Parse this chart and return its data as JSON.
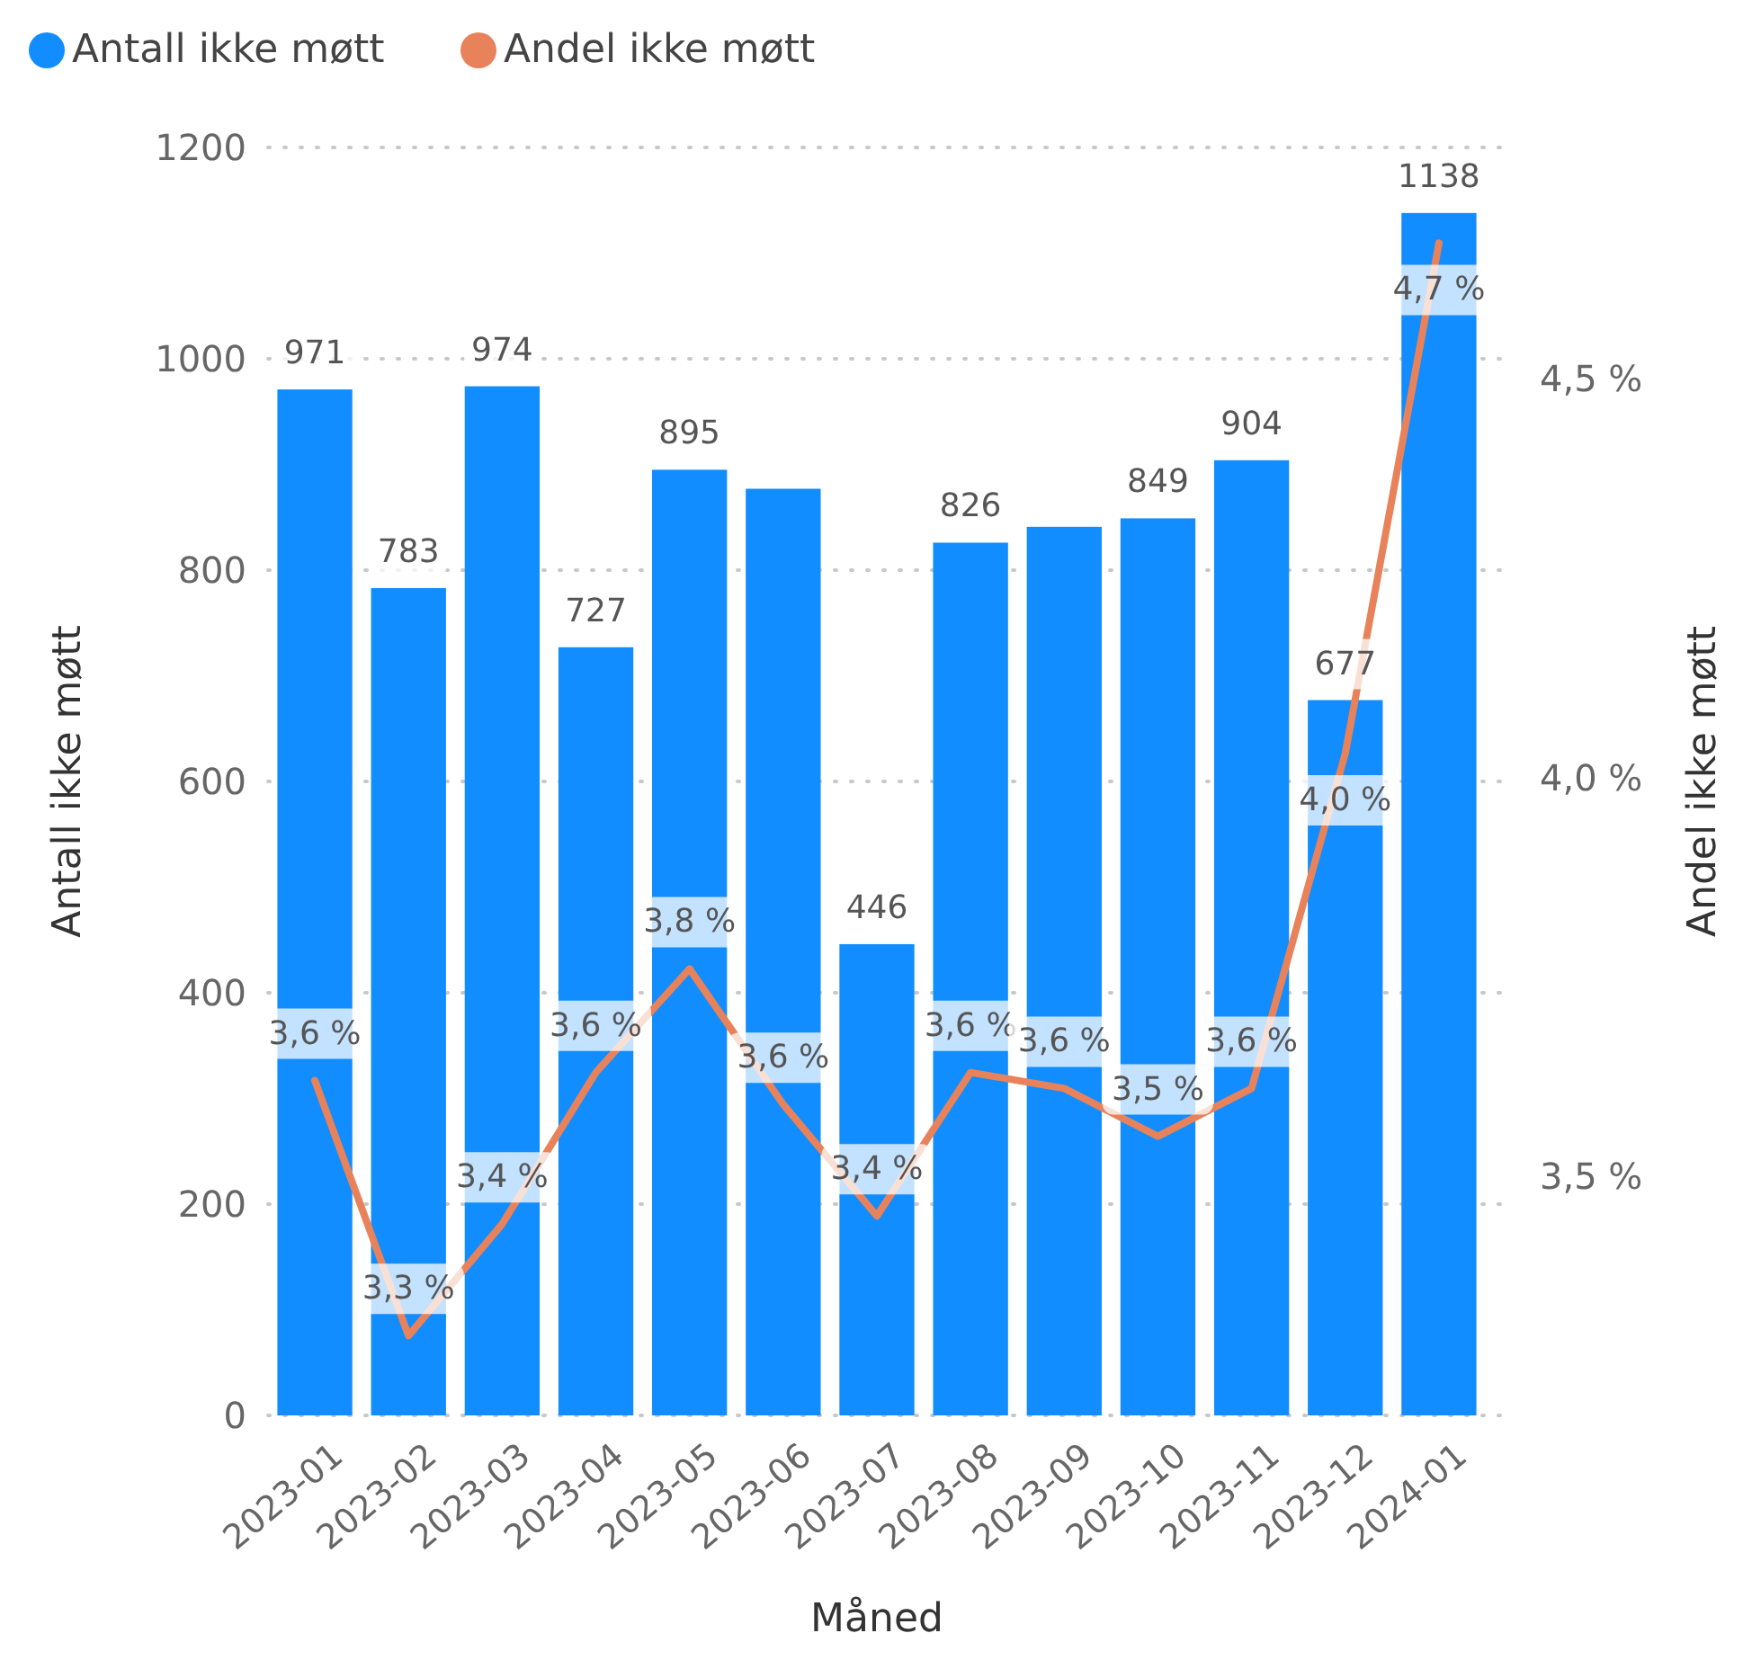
{
  "chart_data": {
    "type": "bar",
    "xlabel": "Måned",
    "ylabel": "Antall ikke møtt",
    "y2label": "Andel ikke møtt",
    "categories": [
      "2023-01",
      "2023-02",
      "2023-03",
      "2023-04",
      "2023-05",
      "2023-06",
      "2023-07",
      "2023-08",
      "2023-09",
      "2023-10",
      "2023-11",
      "2023-12",
      "2024-01"
    ],
    "series": [
      {
        "name": "Antall ikke møtt",
        "color": "#118dff",
        "values": [
          971,
          783,
          974,
          727,
          895,
          877,
          446,
          826,
          841,
          849,
          904,
          677,
          1138
        ],
        "value_labels": [
          "971",
          "783",
          "974",
          "727",
          "895",
          null,
          "446",
          "826",
          null,
          "849",
          "904",
          "677",
          "1138"
        ]
      },
      {
        "name": "Andel ikke møtt",
        "type": "line",
        "axis": "y2",
        "color": "#e8825a",
        "values": [
          3.62,
          3.3,
          3.44,
          3.63,
          3.76,
          3.59,
          3.45,
          3.63,
          3.61,
          3.55,
          3.61,
          4.03,
          4.67
        ],
        "value_labels": [
          "3,6 %",
          "3,3 %",
          "3,4 %",
          "3,6 %",
          "3,8 %",
          "3,6 %",
          "3,4 %",
          "3,6 %",
          "3,6 %",
          "3,5 %",
          "3,6 %",
          "4,0 %",
          "4,7 %"
        ]
      }
    ],
    "ylim": [
      0,
      1200
    ],
    "yticks": [
      0,
      200,
      400,
      600,
      800,
      1000,
      1200
    ],
    "y2lim": [
      3.2,
      4.79
    ],
    "y2ticks": [
      {
        "value": 3.5,
        "label": "3,5 %"
      },
      {
        "value": 4.0,
        "label": "4,0 %"
      },
      {
        "value": 4.5,
        "label": "4,5 %"
      }
    ],
    "grid": "y",
    "legend": "top left",
    "marker": "none",
    "line_style": "solid"
  }
}
